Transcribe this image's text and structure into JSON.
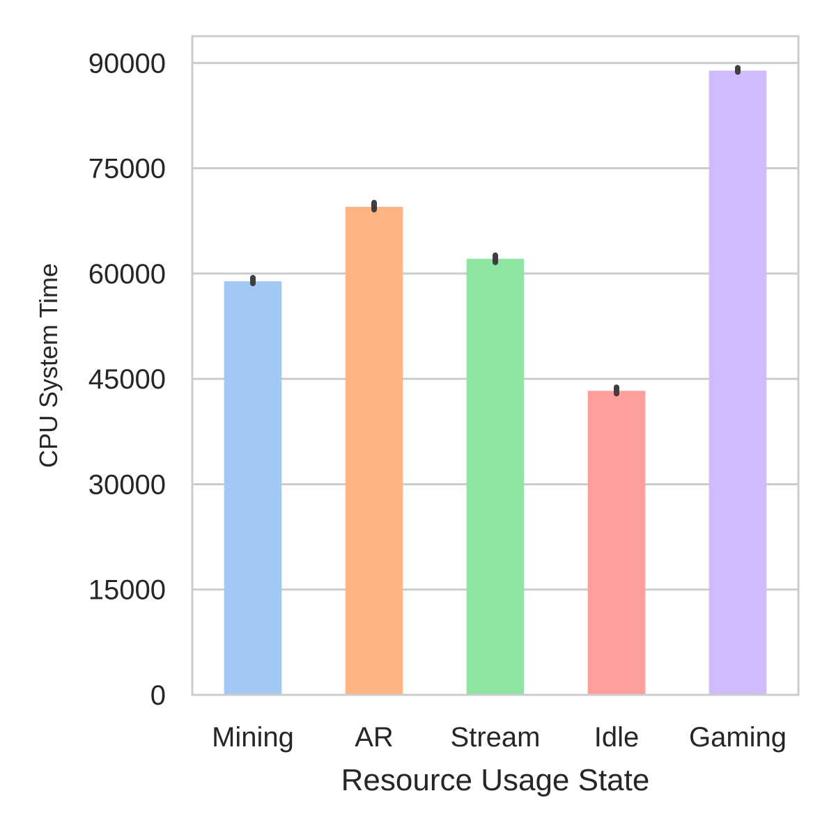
{
  "chart_data": {
    "type": "bar",
    "title": "",
    "xlabel": "Resource Usage State",
    "ylabel": "CPU System Time",
    "categories": [
      "Mining",
      "AR",
      "Stream",
      "Idle",
      "Gaming"
    ],
    "values": [
      58900,
      69500,
      62100,
      43300,
      88900
    ],
    "error_low": [
      58600,
      69100,
      61600,
      42900,
      88700
    ],
    "error_high": [
      59400,
      70100,
      62600,
      43800,
      89300
    ],
    "colors": [
      "#a1c9f4",
      "#ffb482",
      "#8de5a1",
      "#ff9f9b",
      "#d0bbff"
    ],
    "ylim": [
      0,
      93800
    ],
    "yticks": [
      0,
      15000,
      30000,
      45000,
      60000,
      75000,
      90000
    ],
    "ytick_labels": [
      "0",
      "15000",
      "30000",
      "45000",
      "60000",
      "75000",
      "90000"
    ],
    "grid": "horizontal",
    "error_bar_color": "#3f3f3f",
    "grid_color": "#cccccc",
    "frame_color": "#cccccc"
  }
}
